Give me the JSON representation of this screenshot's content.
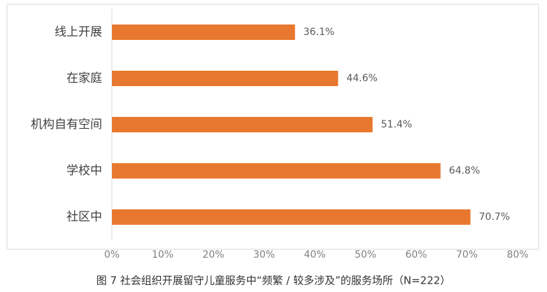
{
  "chart_data": {
    "type": "bar",
    "orientation": "horizontal",
    "title": "图 7 社会组织开展留守儿童服务中“频繁 / 较多涉及”的服务场所（N=222）",
    "categories": [
      "线上开展",
      "在家庭",
      "机构自有空间",
      "学校中",
      "社区中"
    ],
    "values": [
      36.1,
      44.6,
      51.4,
      64.8,
      70.7
    ],
    "value_labels": [
      "36.1%",
      "44.6%",
      "51.4%",
      "64.8%",
      "70.7%"
    ],
    "color": "#e8782f",
    "xlim": [
      0,
      80
    ],
    "xticks": [
      {
        "value": 0,
        "label": "0%"
      },
      {
        "value": 10,
        "label": "10%"
      },
      {
        "value": 20,
        "label": "20%"
      },
      {
        "value": 30,
        "label": "30%"
      },
      {
        "value": 40,
        "label": "40%"
      },
      {
        "value": 50,
        "label": "50%"
      },
      {
        "value": 60,
        "label": "60%"
      },
      {
        "value": 70,
        "label": "70%"
      },
      {
        "value": 80,
        "label": "80%"
      }
    ],
    "grid": false
  }
}
